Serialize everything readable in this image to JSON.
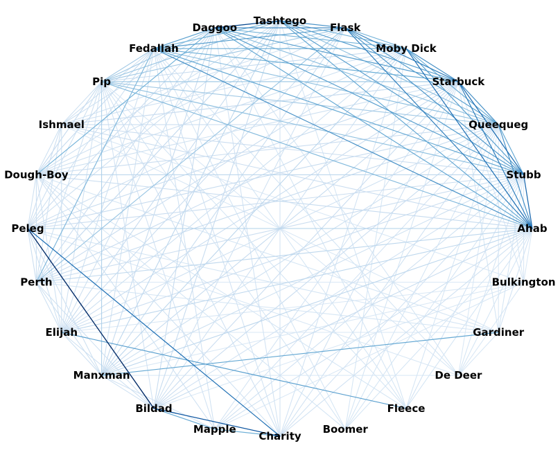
{
  "chart_data": {
    "type": "network",
    "layout": "circular",
    "title": "",
    "colormap": "Blues",
    "colors": {
      "lightest": "#deebf7",
      "darkest": "#08306b",
      "label": "#000000"
    },
    "nodes": [
      "Ahab",
      "Stubb",
      "Queequeg",
      "Starbuck",
      "Moby Dick",
      "Flask",
      "Tashtego",
      "Daggoo",
      "Fedallah",
      "Pip",
      "Ishmael",
      "Dough-Boy",
      "Peleg",
      "Perth",
      "Elijah",
      "Manxman",
      "Bildad",
      "Mapple",
      "Charity",
      "Boomer",
      "Fleece",
      "De Deer",
      "Gardiner",
      "Bulkington"
    ],
    "edges": [
      [
        "Peleg",
        "Bildad",
        1.0
      ],
      [
        "Tashtego",
        "Daggoo",
        0.85
      ],
      [
        "Bildad",
        "Charity",
        0.78
      ],
      [
        "Peleg",
        "Charity",
        0.6
      ],
      [
        "Moby Dick",
        "Ahab",
        0.6
      ],
      [
        "Flask",
        "Starbuck",
        0.55
      ],
      [
        "Stubb",
        "Ahab",
        0.65
      ],
      [
        "Starbuck",
        "Stubb",
        0.62
      ],
      [
        "Flask",
        "Daggoo",
        0.55
      ],
      [
        "Tashtego",
        "Flask",
        0.5
      ],
      [
        "Moby Dick",
        "Starbuck",
        0.5
      ],
      [
        "Starbuck",
        "Ahab",
        0.55
      ],
      [
        "Flask",
        "Ahab",
        0.55
      ],
      [
        "Queequeg",
        "Ahab",
        0.5
      ],
      [
        "Starbuck",
        "Queequeg",
        0.5
      ],
      [
        "Fedallah",
        "Ahab",
        0.5
      ],
      [
        "Daggoo",
        "Starbuck",
        0.45
      ],
      [
        "Tashtego",
        "Starbuck",
        0.45
      ],
      [
        "Fedallah",
        "Flask",
        0.45
      ],
      [
        "Daggoo",
        "Fedallah",
        0.45
      ],
      [
        "Flask",
        "Stubb",
        0.48
      ],
      [
        "Flask",
        "Queequeg",
        0.45
      ],
      [
        "Moby Dick",
        "Stubb",
        0.45
      ],
      [
        "Tashtego",
        "Stubb",
        0.45
      ],
      [
        "Daggoo",
        "Stubb",
        0.45
      ],
      [
        "Fedallah",
        "Stubb",
        0.42
      ],
      [
        "Queequeg",
        "Stubb",
        0.42
      ],
      [
        "Tashtego",
        "Ahab",
        0.42
      ],
      [
        "Daggoo",
        "Ahab",
        0.42
      ],
      [
        "Moby Dick",
        "Queequeg",
        0.4
      ],
      [
        "Fedallah",
        "Moby Dick",
        0.4
      ],
      [
        "Daggoo",
        "Moby Dick",
        0.38
      ],
      [
        "Tashtego",
        "Moby Dick",
        0.38
      ],
      [
        "Tashtego",
        "Fedallah",
        0.38
      ],
      [
        "Fedallah",
        "Starbuck",
        0.4
      ],
      [
        "Flask",
        "Moby Dick",
        0.38
      ],
      [
        "Elijah",
        "Fleece",
        0.45
      ],
      [
        "Manxman",
        "Gardiner",
        0.42
      ],
      [
        "Bildad",
        "Mapple",
        0.42
      ],
      [
        "Mapple",
        "Charity",
        0.4
      ],
      [
        "Daggoo",
        "Dough-Boy",
        0.38
      ],
      [
        "Fedallah",
        "Perth",
        0.35
      ],
      [
        "Flask",
        "Perth",
        0.3
      ],
      [
        "Pip",
        "Ahab",
        0.35
      ],
      [
        "Pip",
        "Stubb",
        0.32
      ],
      [
        "Pip",
        "Starbuck",
        0.3
      ],
      [
        "Pip",
        "Queequeg",
        0.28
      ],
      [
        "Daggoo",
        "Queequeg",
        0.32
      ],
      [
        "Tashtego",
        "Queequeg",
        0.32
      ],
      [
        "Fedallah",
        "Queequeg",
        0.32
      ],
      [
        "Tashtego",
        "Pip",
        0.3
      ],
      [
        "Flask",
        "Pip",
        0.28
      ],
      [
        "Fedallah",
        "Pip",
        0.28
      ],
      [
        "Daggoo",
        "Pip",
        0.28
      ],
      [
        "Pip",
        "Manxman",
        0.25
      ],
      [
        "Peleg",
        "Ahab",
        0.25
      ],
      [
        "Perth",
        "Ahab",
        0.22
      ],
      [
        "Dough-Boy",
        "Stubb",
        0.22
      ],
      [
        "Dough-Boy",
        "Ahab",
        0.2
      ],
      [
        "Perth",
        "Queequeg",
        0.2
      ],
      [
        "Elijah",
        "Ahab",
        0.22
      ],
      [
        "Ishmael",
        "Ahab",
        0.18
      ],
      [
        "Ishmael",
        "Queequeg",
        0.2
      ],
      [
        "Ishmael",
        "Stubb",
        0.18
      ],
      [
        "Ishmael",
        "Starbuck",
        0.18
      ],
      [
        "Peleg",
        "Starbuck",
        0.2
      ],
      [
        "Peleg",
        "Stubb",
        0.18
      ],
      [
        "Peleg",
        "Queequeg",
        0.2
      ],
      [
        "Manxman",
        "Ahab",
        0.22
      ],
      [
        "Manxman",
        "Moby Dick",
        0.22
      ],
      [
        "Manxman",
        "Starbuck",
        0.2
      ],
      [
        "Manxman",
        "Tashtego",
        0.22
      ],
      [
        "Manxman",
        "Daggoo",
        0.2
      ],
      [
        "Bildad",
        "Tashtego",
        0.2
      ],
      [
        "Bildad",
        "Daggoo",
        0.2
      ],
      [
        "Bildad",
        "Starbuck",
        0.18
      ],
      [
        "Bildad",
        "Queequeg",
        0.18
      ],
      [
        "Bildad",
        "Ahab",
        0.2
      ],
      [
        "Elijah",
        "Tashtego",
        0.2
      ],
      [
        "Elijah",
        "Flask",
        0.18
      ],
      [
        "Elijah",
        "Stubb",
        0.18
      ],
      [
        "Elijah",
        "Starbuck",
        0.18
      ],
      [
        "Perth",
        "Starbuck",
        0.18
      ],
      [
        "Perth",
        "Moby Dick",
        0.18
      ],
      [
        "Perth",
        "Stubb",
        0.18
      ],
      [
        "Perth",
        "Tashtego",
        0.2
      ],
      [
        "Charity",
        "Ahab",
        0.15
      ],
      [
        "Charity",
        "Starbuck",
        0.15
      ],
      [
        "Charity",
        "Queequeg",
        0.15
      ],
      [
        "Charity",
        "Tashtego",
        0.15
      ],
      [
        "Charity",
        "Dough-Boy",
        0.15
      ],
      [
        "Charity",
        "Pip",
        0.15
      ],
      [
        "Mapple",
        "Ahab",
        0.15
      ],
      [
        "Mapple",
        "Stubb",
        0.15
      ],
      [
        "Mapple",
        "Dough-Boy",
        0.15
      ],
      [
        "Mapple",
        "Fedallah",
        0.15
      ],
      [
        "Boomer",
        "Ahab",
        0.12
      ],
      [
        "Boomer",
        "Stubb",
        0.12
      ],
      [
        "Boomer",
        "Starbuck",
        0.12
      ],
      [
        "Boomer",
        "Dough-Boy",
        0.12
      ],
      [
        "Fleece",
        "Stubb",
        0.14
      ],
      [
        "Fleece",
        "Ahab",
        0.12
      ],
      [
        "Fleece",
        "Dough-Boy",
        0.12
      ],
      [
        "Fleece",
        "Pip",
        0.12
      ],
      [
        "De Deer",
        "Ahab",
        0.12
      ],
      [
        "De Deer",
        "Stubb",
        0.12
      ],
      [
        "De Deer",
        "Fedallah",
        0.12
      ],
      [
        "De Deer",
        "Daggoo",
        0.12
      ],
      [
        "De Deer",
        "Manxman",
        0.1
      ],
      [
        "Gardiner",
        "Ahab",
        0.14
      ],
      [
        "Gardiner",
        "Starbuck",
        0.12
      ],
      [
        "Gardiner",
        "Stubb",
        0.12
      ],
      [
        "Gardiner",
        "Ishmael",
        0.1
      ],
      [
        "Bulkington",
        "Ahab",
        0.1
      ],
      [
        "Bulkington",
        "Stubb",
        0.1
      ],
      [
        "Bulkington",
        "Ishmael",
        0.1
      ],
      [
        "Bulkington",
        "Starbuck",
        0.1
      ],
      [
        "Bulkington",
        "Manxman",
        0.1
      ],
      [
        "Bulkington",
        "Bildad",
        0.1
      ],
      [
        "Bulkington",
        "Mapple",
        0.1
      ],
      [
        "Bulkington",
        "De Deer",
        0.1
      ],
      [
        "Gardiner",
        "De Deer",
        0.1
      ],
      [
        "Gardiner",
        "Elijah",
        0.1
      ],
      [
        "Ishmael",
        "Peleg",
        0.18
      ],
      [
        "Ishmael",
        "Perth",
        0.16
      ],
      [
        "Ishmael",
        "Elijah",
        0.16
      ],
      [
        "Ishmael",
        "Dough-Boy",
        0.16
      ],
      [
        "Ishmael",
        "Fedallah",
        0.16
      ],
      [
        "Ishmael",
        "Flask",
        0.15
      ],
      [
        "Dough-Boy",
        "Peleg",
        0.16
      ],
      [
        "Dough-Boy",
        "Perth",
        0.16
      ],
      [
        "Dough-Boy",
        "Queequeg",
        0.18
      ],
      [
        "Dough-Boy",
        "Starbuck",
        0.16
      ],
      [
        "Dough-Boy",
        "Flask",
        0.16
      ],
      [
        "Dough-Boy",
        "Pip",
        0.16
      ],
      [
        "Peleg",
        "Perth",
        0.18
      ],
      [
        "Peleg",
        "Elijah",
        0.16
      ],
      [
        "Peleg",
        "Manxman",
        0.16
      ],
      [
        "Peleg",
        "Fedallah",
        0.16
      ],
      [
        "Peleg",
        "Moby Dick",
        0.15
      ],
      [
        "Perth",
        "Elijah",
        0.16
      ],
      [
        "Perth",
        "Manxman",
        0.16
      ],
      [
        "Perth",
        "Bildad",
        0.15
      ],
      [
        "Perth",
        "Daggoo",
        0.18
      ],
      [
        "Perth",
        "Pip",
        0.16
      ],
      [
        "Elijah",
        "Manxman",
        0.16
      ],
      [
        "Elijah",
        "Bildad",
        0.15
      ],
      [
        "Elijah",
        "Dough-Boy",
        0.15
      ],
      [
        "Elijah",
        "Pip",
        0.15
      ],
      [
        "Elijah",
        "Daggoo",
        0.16
      ],
      [
        "Manxman",
        "Bildad",
        0.15
      ],
      [
        "Manxman",
        "Mapple",
        0.14
      ],
      [
        "Manxman",
        "Queequeg",
        0.16
      ],
      [
        "Manxman",
        "Stubb",
        0.16
      ],
      [
        "Manxman",
        "Flask",
        0.15
      ],
      [
        "Bildad",
        "Moby Dick",
        0.15
      ],
      [
        "Bildad",
        "Flask",
        0.15
      ],
      [
        "Bildad",
        "Pip",
        0.14
      ],
      [
        "Bildad",
        "Stubb",
        0.14
      ],
      [
        "Mapple",
        "Pip",
        0.14
      ],
      [
        "Mapple",
        "Queequeg",
        0.13
      ],
      [
        "Mapple",
        "Starbuck",
        0.13
      ],
      [
        "Charity",
        "Stubb",
        0.14
      ],
      [
        "Charity",
        "Moby Dick",
        0.14
      ],
      [
        "Charity",
        "Fedallah",
        0.14
      ],
      [
        "Charity",
        "Daggoo",
        0.14
      ],
      [
        "Boomer",
        "Queequeg",
        0.12
      ],
      [
        "Boomer",
        "Moby Dick",
        0.12
      ],
      [
        "Boomer",
        "Fedallah",
        0.12
      ],
      [
        "Boomer",
        "Pip",
        0.12
      ],
      [
        "Fleece",
        "Queequeg",
        0.12
      ],
      [
        "Fleece",
        "Daggoo",
        0.12
      ],
      [
        "Fleece",
        "Tashtego",
        0.12
      ],
      [
        "Fleece",
        "Fedallah",
        0.12
      ],
      [
        "De Deer",
        "Queequeg",
        0.1
      ],
      [
        "De Deer",
        "Pip",
        0.1
      ],
      [
        "De Deer",
        "Peleg",
        0.1
      ],
      [
        "Gardiner",
        "Dough-Boy",
        0.12
      ],
      [
        "Gardiner",
        "Peleg",
        0.12
      ],
      [
        "Gardiner",
        "Perth",
        0.12
      ],
      [
        "Gardiner",
        "Queequeg",
        0.1
      ],
      [
        "Bulkington",
        "Queequeg",
        0.1
      ],
      [
        "Bulkington",
        "Perth",
        0.1
      ],
      [
        "Bulkington",
        "Elijah",
        0.1
      ],
      [
        "Pip",
        "Ishmael",
        0.16
      ],
      [
        "Pip",
        "Dough-Boy",
        0.18
      ],
      [
        "Pip",
        "Peleg",
        0.16
      ],
      [
        "Pip",
        "Moby Dick",
        0.2
      ],
      [
        "Fedallah",
        "Perth",
        0.2
      ],
      [
        "Fedallah",
        "Dough-Boy",
        0.2
      ],
      [
        "Fedallah",
        "Elijah",
        0.16
      ],
      [
        "Fedallah",
        "Manxman",
        0.16
      ],
      [
        "Daggoo",
        "Peleg",
        0.18
      ],
      [
        "Daggoo",
        "Ishmael",
        0.16
      ],
      [
        "Tashtego",
        "Dough-Boy",
        0.16
      ],
      [
        "Tashtego",
        "Perth",
        0.16
      ],
      [
        "Tashtego",
        "Peleg",
        0.16
      ],
      [
        "Flask",
        "Manxman",
        0.16
      ],
      [
        "Moby Dick",
        "Elijah",
        0.16
      ],
      [
        "Moby Dick",
        "Dough-Boy",
        0.16
      ],
      [
        "Moby Dick",
        "Ishmael",
        0.15
      ],
      [
        "Starbuck",
        "Ishmael",
        0.16
      ],
      [
        "Queequeg",
        "Elijah",
        0.15
      ]
    ]
  }
}
